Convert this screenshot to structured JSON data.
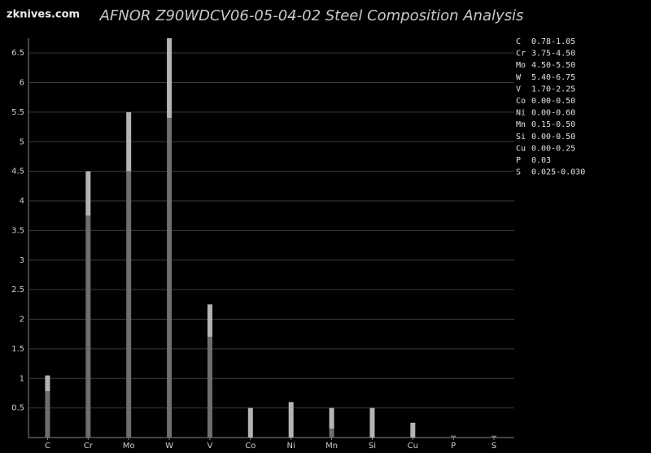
{
  "watermark": "zknives.com",
  "chart_data": {
    "type": "range-bar",
    "title": "AFNOR Z90WDCV06-05-04-02 Steel Composition Analysis",
    "categories": [
      "C",
      "Cr",
      "Mo",
      "W",
      "V",
      "Co",
      "Ni",
      "Mn",
      "Si",
      "Cu",
      "P",
      "S"
    ],
    "min_values": [
      0.78,
      3.75,
      4.5,
      5.4,
      1.7,
      0,
      0,
      0.15,
      0,
      0,
      0.03,
      0.025
    ],
    "max_values": [
      1.05,
      4.5,
      5.5,
      6.75,
      2.25,
      0.5,
      0.6,
      0.5,
      0.5,
      0.25,
      0.03,
      0.03
    ],
    "min_color": "#6e6e6e",
    "max_color": "#b4b4b4",
    "legend_ranges": [
      "0.78-1.05",
      "3.75-4.50",
      "4.50-5.50",
      "5.40-6.75",
      "1.70-2.25",
      "0.00-0.50",
      "0.00-0.60",
      "0.15-0.50",
      "0.00-0.50",
      "0.00-0.25",
      "0.03",
      "0.025-0.030"
    ],
    "ylim": [
      0,
      6.75
    ],
    "yticks": [
      0.5,
      1,
      1.5,
      2,
      2.5,
      3,
      3.5,
      4,
      4.5,
      5,
      5.5,
      6,
      6.5
    ],
    "grid": true
  }
}
